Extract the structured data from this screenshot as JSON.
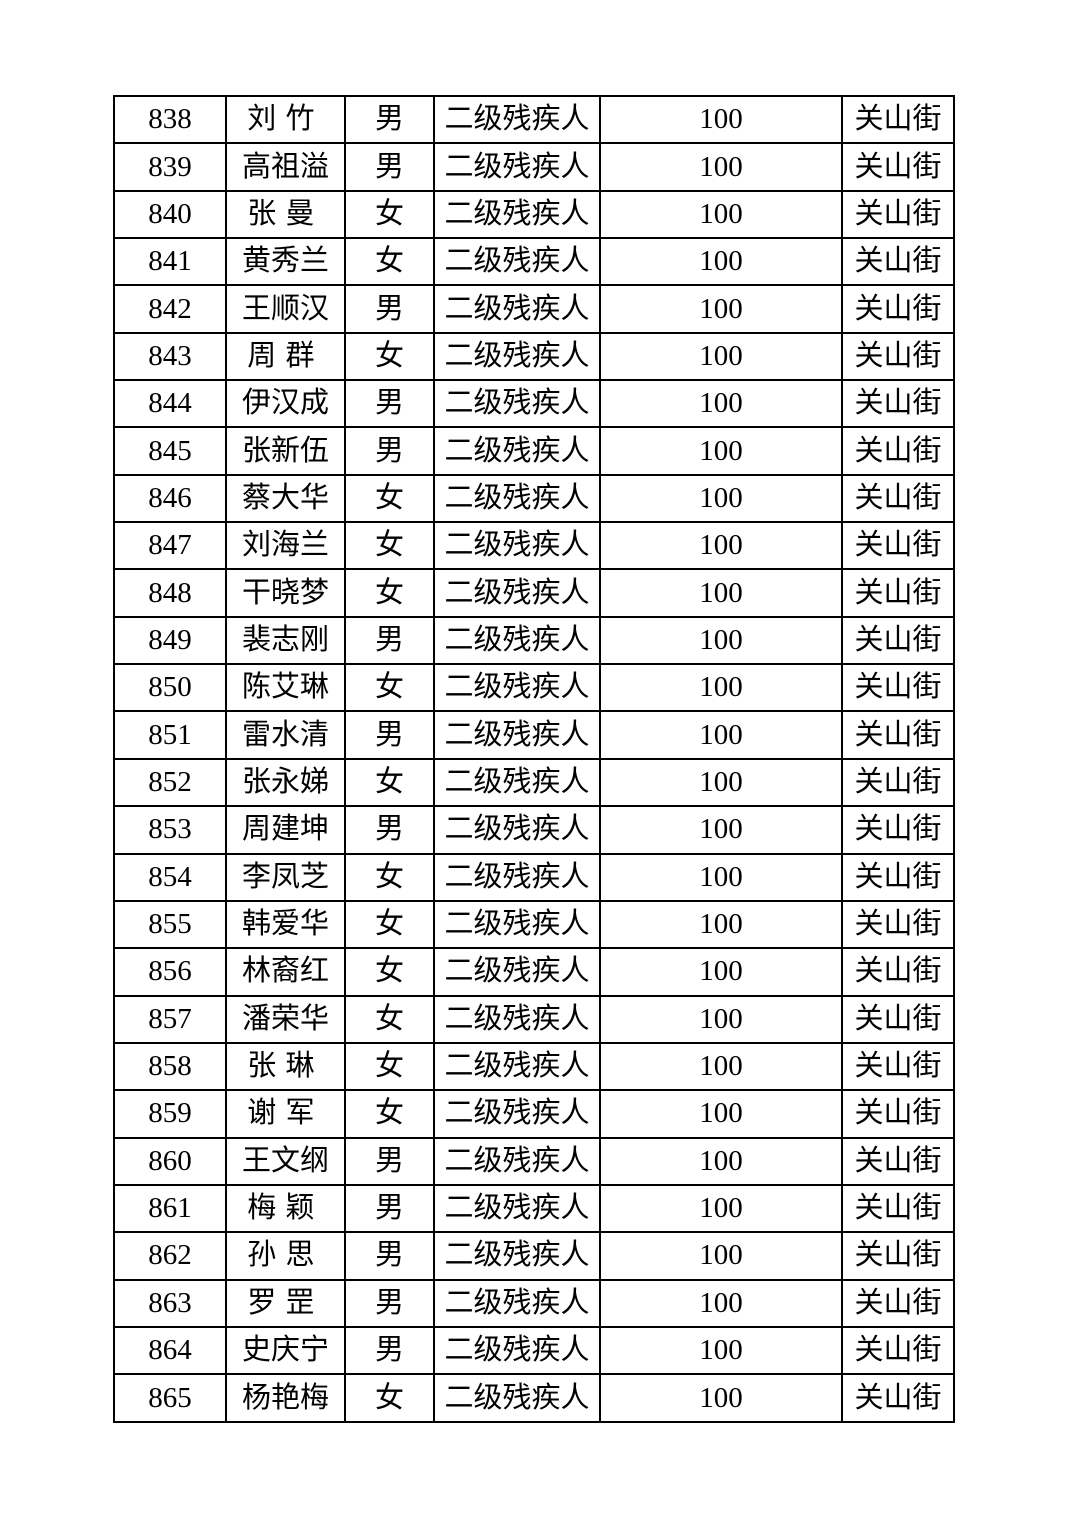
{
  "page": {
    "background_color": "#ffffff",
    "text_color": "#000000",
    "border_color": "#000000"
  },
  "table": {
    "rows": [
      [
        "838",
        "刘竹",
        "男",
        "二级残疾人",
        "100",
        "关山街"
      ],
      [
        "839",
        "高祖溢",
        "男",
        "二级残疾人",
        "100",
        "关山街"
      ],
      [
        "840",
        "张曼",
        "女",
        "二级残疾人",
        "100",
        "关山街"
      ],
      [
        "841",
        "黄秀兰",
        "女",
        "二级残疾人",
        "100",
        "关山街"
      ],
      [
        "842",
        "王顺汉",
        "男",
        "二级残疾人",
        "100",
        "关山街"
      ],
      [
        "843",
        "周群",
        "女",
        "二级残疾人",
        "100",
        "关山街"
      ],
      [
        "844",
        "伊汉成",
        "男",
        "二级残疾人",
        "100",
        "关山街"
      ],
      [
        "845",
        "张新伍",
        "男",
        "二级残疾人",
        "100",
        "关山街"
      ],
      [
        "846",
        "蔡大华",
        "女",
        "二级残疾人",
        "100",
        "关山街"
      ],
      [
        "847",
        "刘海兰",
        "女",
        "二级残疾人",
        "100",
        "关山街"
      ],
      [
        "848",
        "干晓梦",
        "女",
        "二级残疾人",
        "100",
        "关山街"
      ],
      [
        "849",
        "裴志刚",
        "男",
        "二级残疾人",
        "100",
        "关山街"
      ],
      [
        "850",
        "陈艾琳",
        "女",
        "二级残疾人",
        "100",
        "关山街"
      ],
      [
        "851",
        "雷水清",
        "男",
        "二级残疾人",
        "100",
        "关山街"
      ],
      [
        "852",
        "张永娣",
        "女",
        "二级残疾人",
        "100",
        "关山街"
      ],
      [
        "853",
        "周建坤",
        "男",
        "二级残疾人",
        "100",
        "关山街"
      ],
      [
        "854",
        "李凤芝",
        "女",
        "二级残疾人",
        "100",
        "关山街"
      ],
      [
        "855",
        "韩爱华",
        "女",
        "二级残疾人",
        "100",
        "关山街"
      ],
      [
        "856",
        "林裔红",
        "女",
        "二级残疾人",
        "100",
        "关山街"
      ],
      [
        "857",
        "潘荣华",
        "女",
        "二级残疾人",
        "100",
        "关山街"
      ],
      [
        "858",
        "张琳",
        "女",
        "二级残疾人",
        "100",
        "关山街"
      ],
      [
        "859",
        "谢军",
        "女",
        "二级残疾人",
        "100",
        "关山街"
      ],
      [
        "860",
        "王文纲",
        "男",
        "二级残疾人",
        "100",
        "关山街"
      ],
      [
        "861",
        "梅颖",
        "男",
        "二级残疾人",
        "100",
        "关山街"
      ],
      [
        "862",
        "孙思",
        "男",
        "二级残疾人",
        "100",
        "关山街"
      ],
      [
        "863",
        "罗罡",
        "男",
        "二级残疾人",
        "100",
        "关山街"
      ],
      [
        "864",
        "史庆宁",
        "男",
        "二级残疾人",
        "100",
        "关山街"
      ],
      [
        "865",
        "杨艳梅",
        "女",
        "二级残疾人",
        "100",
        "关山街"
      ]
    ]
  }
}
